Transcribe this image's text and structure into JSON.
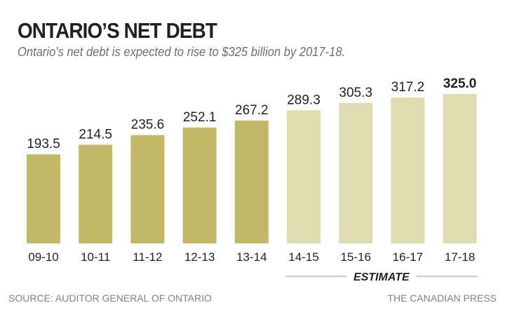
{
  "chart_data": {
    "type": "bar",
    "title": "ONTARIO’S NET DEBT",
    "subtitle": "Ontario's net debt is expected to rise to $325 billion by 2017-18.",
    "categories": [
      "09-10",
      "10-11",
      "11-12",
      "12-13",
      "13-14",
      "14-15",
      "15-16",
      "16-17",
      "17-18"
    ],
    "values": [
      193.5,
      214.5,
      235.6,
      252.1,
      267.2,
      289.3,
      305.3,
      317.2,
      325.0
    ],
    "value_labels": [
      "193.5",
      "214.5",
      "235.6",
      "252.1",
      "267.2",
      "289.3",
      "305.3",
      "317.2",
      "325.0"
    ],
    "estimate": [
      false,
      false,
      false,
      false,
      false,
      true,
      true,
      true,
      true
    ],
    "estimate_label": "ESTIMATE",
    "ylim": [
      0,
      325
    ],
    "grid": false,
    "colors": {
      "actual": "#c2b865",
      "estimate": "#e0dcb2",
      "text": "#231f20"
    }
  },
  "footer": {
    "source": "SOURCE: AUDITOR GENERAL OF ONTARIO",
    "credit": "THE CANADIAN PRESS"
  }
}
